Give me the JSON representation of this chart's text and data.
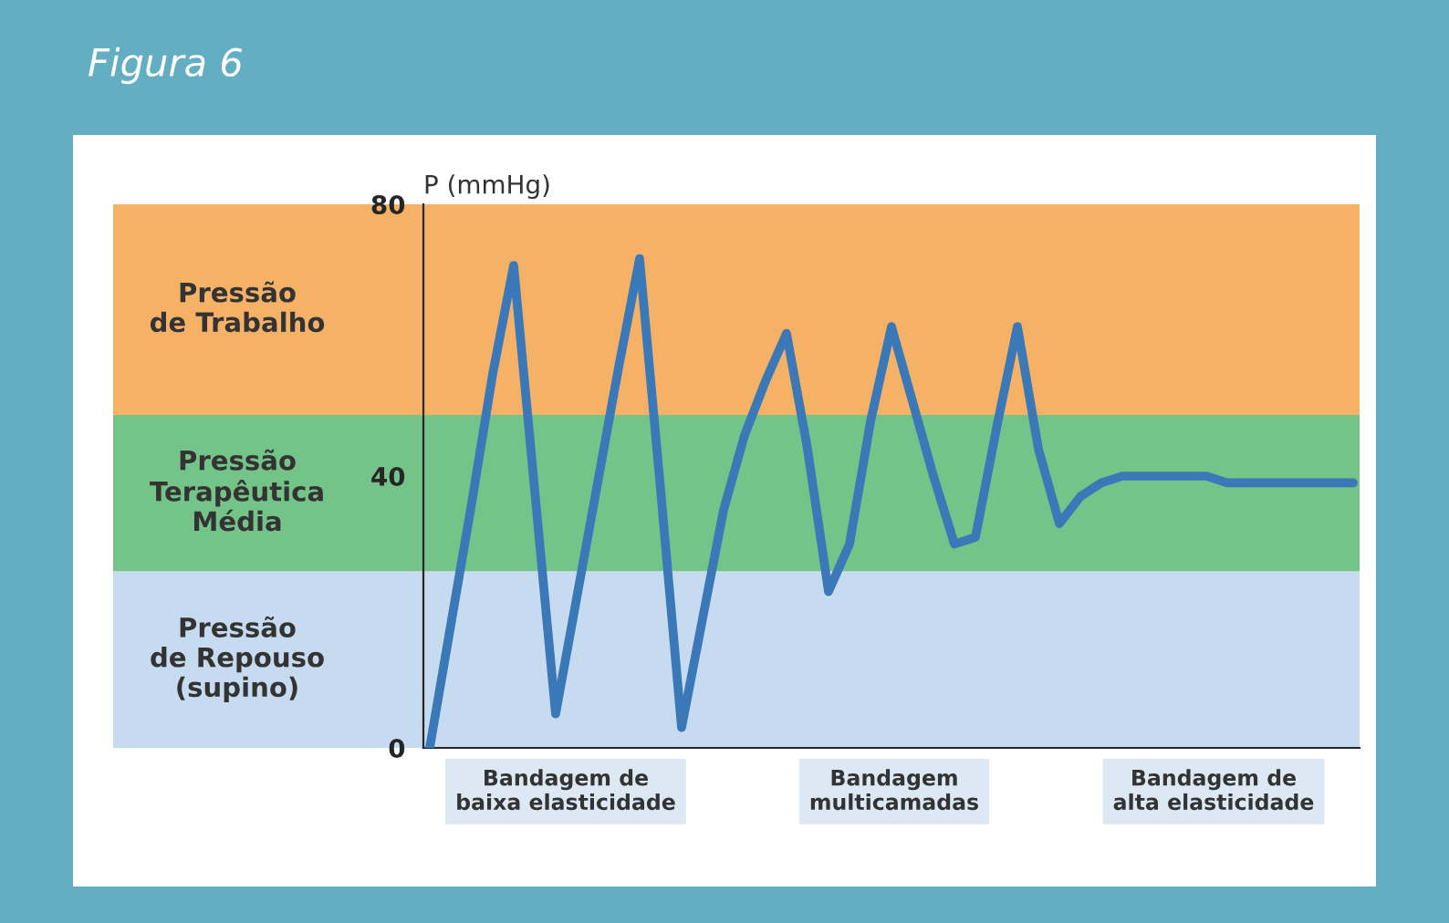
{
  "chart_data": {
    "type": "line",
    "title": "Figura 6",
    "ylabel": "P (mmHg)",
    "categories": [
      null,
      null,
      null,
      null,
      null,
      null,
      null,
      null,
      null,
      null,
      null,
      null,
      null,
      null,
      null,
      null,
      null,
      null,
      null,
      null,
      null,
      null,
      null,
      null,
      null,
      null,
      null,
      null,
      null,
      null,
      null,
      null,
      null,
      null,
      null,
      null,
      null,
      null,
      null,
      null,
      null,
      null,
      null,
      null,
      null
    ],
    "series": [
      {
        "color": "#3a78b8",
        "values": [
          0,
          18,
          36,
          55,
          71,
          38,
          5,
          22,
          39,
          56,
          72,
          38,
          3,
          19,
          35,
          46,
          54,
          61,
          44,
          23,
          30,
          48,
          62,
          51,
          40,
          30,
          31,
          47,
          62,
          44,
          33,
          37,
          39,
          40,
          40,
          40,
          40,
          40,
          39,
          39,
          39,
          39,
          39,
          39,
          39
        ]
      }
    ],
    "ylim": [
      0,
      80
    ],
    "yticks": [
      0,
      40,
      80
    ],
    "tick_labels": "y",
    "grid": false,
    "bands": [
      {
        "axis": "y",
        "from": 0,
        "to": 26,
        "label": "Pressão\nde Repouso\n(supino)",
        "color": "#bcd5ec"
      },
      {
        "axis": "y",
        "from": 26,
        "to": 49,
        "label": "Pressão\nTerapêutica\nMédia",
        "color": "#5cb874"
      },
      {
        "axis": "y",
        "from": 49,
        "to": 80,
        "label": "Pressão\nde Trabalho",
        "color": "#f3a44c"
      }
    ],
    "annotations": [
      "Bandagem de\nbaixa elasticidade",
      "Bandagem\nmulticamadas",
      "Bandagem de\nalta elasticidade"
    ]
  }
}
